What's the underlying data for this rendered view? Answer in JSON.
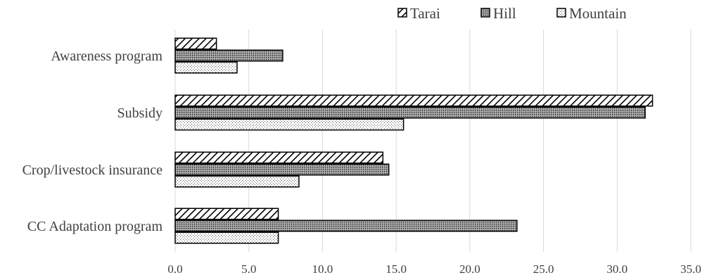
{
  "chart_data": {
    "type": "bar",
    "orientation": "horizontal",
    "categories": [
      "Awareness program",
      "Subsidy",
      "Crop/livestock  insurance",
      "CC Adaptation program"
    ],
    "series": [
      {
        "name": "Tarai",
        "values": [
          2.8,
          32.4,
          14.1,
          7.0
        ],
        "pattern": "diagonal-hatch"
      },
      {
        "name": "Hill",
        "values": [
          7.3,
          31.9,
          14.5,
          23.2
        ],
        "pattern": "dense-dots-gray"
      },
      {
        "name": "Mountain",
        "values": [
          4.2,
          15.5,
          8.4,
          7.0
        ],
        "pattern": "sparse-dots"
      }
    ],
    "xlim": [
      0,
      35
    ],
    "xticks": [
      "0.0",
      "5.0",
      "10.0",
      "15.0",
      "20.0",
      "25.0",
      "30.0",
      "35.0"
    ],
    "grid": "vertical",
    "legend": "top-right",
    "title": "",
    "xlabel": "",
    "ylabel": ""
  }
}
